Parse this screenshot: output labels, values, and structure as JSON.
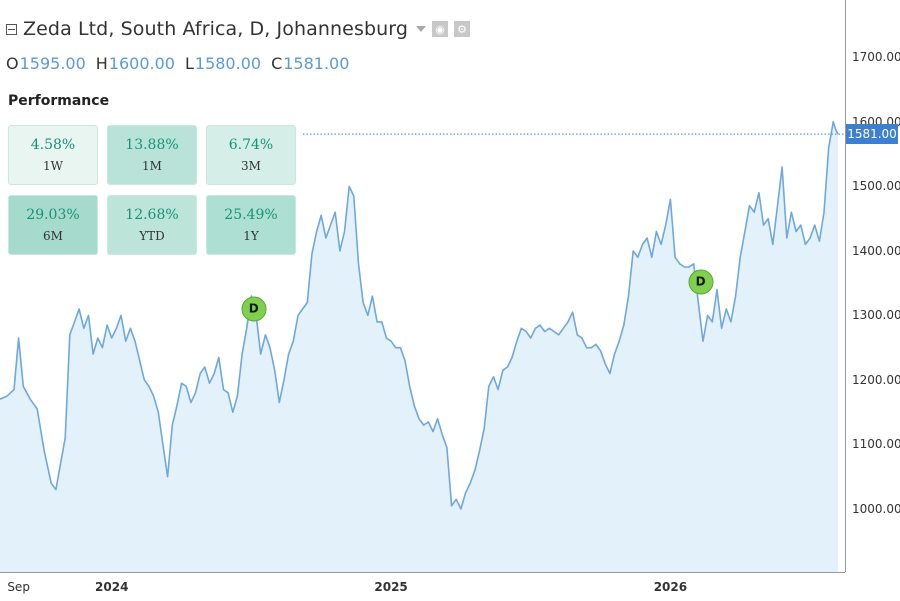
{
  "header": {
    "title": "Zeda Ltd, South Africa, D, Johannesburg",
    "ohlc": [
      {
        "key": "O",
        "value": "1595.00"
      },
      {
        "key": "H",
        "value": "1600.00"
      },
      {
        "key": "L",
        "value": "1580.00"
      },
      {
        "key": "C",
        "value": "1581.00"
      }
    ]
  },
  "performance": {
    "title": "Performance",
    "cells": [
      {
        "pct": "4.58%",
        "period": "1W",
        "color": "#e9f5f1"
      },
      {
        "pct": "13.88%",
        "period": "1M",
        "color": "#b9e3d8"
      },
      {
        "pct": "6.74%",
        "period": "3M",
        "color": "#d5eee7"
      },
      {
        "pct": "29.03%",
        "period": "6M",
        "color": "#a6dacd"
      },
      {
        "pct": "12.68%",
        "period": "YTD",
        "color": "#bce4d9"
      },
      {
        "pct": "25.49%",
        "period": "1Y",
        "color": "#addfd2"
      }
    ]
  },
  "colors": {
    "line": "#6fa8dc",
    "area": "#e3f1fb",
    "last_price": "#3d7fd1",
    "gain_text": "#179377"
  },
  "chart_data": {
    "type": "area",
    "ylim": [
      900,
      1800
    ],
    "y_ticks": [
      "1000.00",
      "1100.00",
      "1200.00",
      "1300.00",
      "1400.00",
      "1500.00",
      "1600.00",
      "1700.00"
    ],
    "x_ticks": [
      {
        "t": 0.5,
        "label": "Sep",
        "bold": false
      },
      {
        "t": 4.5,
        "label": "2024",
        "bold": true
      },
      {
        "t": 8.5,
        "label": "",
        "bold": false
      },
      {
        "t": 12.5,
        "label": "",
        "bold": false
      },
      {
        "t": 16.5,
        "label": "2025",
        "bold": true
      },
      {
        "t": 20.5,
        "label": "",
        "bold": false
      },
      {
        "t": 24.5,
        "label": "",
        "bold": false
      },
      {
        "t": 28.5,
        "label": "2026",
        "bold": true
      },
      {
        "t": 32.5,
        "label": "",
        "bold": false
      }
    ],
    "x_range": [
      0,
      36
    ],
    "last_price": {
      "value": 1581.0,
      "label": "1581.00"
    },
    "dividends": [
      {
        "t": 10.9,
        "value": 1310,
        "label": "D"
      },
      {
        "t": 30.1,
        "value": 1352,
        "label": "D"
      }
    ],
    "series": [
      {
        "points": [
          [
            0.0,
            1170
          ],
          [
            0.3,
            1175
          ],
          [
            0.6,
            1185
          ],
          [
            0.8,
            1265
          ],
          [
            1.0,
            1190
          ],
          [
            1.3,
            1170
          ],
          [
            1.6,
            1155
          ],
          [
            1.9,
            1090
          ],
          [
            2.2,
            1040
          ],
          [
            2.4,
            1030
          ],
          [
            2.6,
            1070
          ],
          [
            2.8,
            1110
          ],
          [
            3.0,
            1270
          ],
          [
            3.2,
            1290
          ],
          [
            3.4,
            1310
          ],
          [
            3.6,
            1280
          ],
          [
            3.8,
            1300
          ],
          [
            4.0,
            1240
          ],
          [
            4.2,
            1265
          ],
          [
            4.4,
            1250
          ],
          [
            4.6,
            1285
          ],
          [
            4.8,
            1265
          ],
          [
            5.0,
            1280
          ],
          [
            5.2,
            1300
          ],
          [
            5.4,
            1260
          ],
          [
            5.6,
            1280
          ],
          [
            5.8,
            1260
          ],
          [
            6.0,
            1230
          ],
          [
            6.2,
            1200
          ],
          [
            6.4,
            1190
          ],
          [
            6.6,
            1175
          ],
          [
            6.8,
            1150
          ],
          [
            7.0,
            1100
          ],
          [
            7.2,
            1050
          ],
          [
            7.4,
            1130
          ],
          [
            7.6,
            1160
          ],
          [
            7.8,
            1195
          ],
          [
            8.0,
            1190
          ],
          [
            8.2,
            1165
          ],
          [
            8.4,
            1180
          ],
          [
            8.6,
            1210
          ],
          [
            8.8,
            1220
          ],
          [
            9.0,
            1195
          ],
          [
            9.2,
            1210
          ],
          [
            9.4,
            1235
          ],
          [
            9.6,
            1185
          ],
          [
            9.8,
            1180
          ],
          [
            10.0,
            1150
          ],
          [
            10.2,
            1175
          ],
          [
            10.4,
            1240
          ],
          [
            10.6,
            1280
          ],
          [
            10.8,
            1330
          ],
          [
            11.0,
            1300
          ],
          [
            11.2,
            1240
          ],
          [
            11.4,
            1270
          ],
          [
            11.6,
            1250
          ],
          [
            11.8,
            1215
          ],
          [
            12.0,
            1165
          ],
          [
            12.2,
            1200
          ],
          [
            12.4,
            1240
          ],
          [
            12.6,
            1260
          ],
          [
            12.8,
            1300
          ],
          [
            13.0,
            1310
          ],
          [
            13.2,
            1320
          ],
          [
            13.4,
            1395
          ],
          [
            13.6,
            1430
          ],
          [
            13.8,
            1455
          ],
          [
            14.0,
            1420
          ],
          [
            14.2,
            1440
          ],
          [
            14.4,
            1460
          ],
          [
            14.6,
            1400
          ],
          [
            14.8,
            1430
          ],
          [
            15.0,
            1500
          ],
          [
            15.2,
            1485
          ],
          [
            15.4,
            1380
          ],
          [
            15.6,
            1320
          ],
          [
            15.8,
            1300
          ],
          [
            16.0,
            1330
          ],
          [
            16.2,
            1290
          ],
          [
            16.4,
            1290
          ],
          [
            16.6,
            1265
          ],
          [
            16.8,
            1260
          ],
          [
            17.0,
            1250
          ],
          [
            17.2,
            1250
          ],
          [
            17.4,
            1230
          ],
          [
            17.6,
            1190
          ],
          [
            17.8,
            1160
          ],
          [
            18.0,
            1140
          ],
          [
            18.2,
            1130
          ],
          [
            18.4,
            1135
          ],
          [
            18.6,
            1120
          ],
          [
            18.8,
            1140
          ],
          [
            19.0,
            1115
          ],
          [
            19.2,
            1095
          ],
          [
            19.4,
            1005
          ],
          [
            19.6,
            1015
          ],
          [
            19.8,
            1000
          ],
          [
            20.0,
            1025
          ],
          [
            20.2,
            1040
          ],
          [
            20.4,
            1060
          ],
          [
            20.6,
            1090
          ],
          [
            20.8,
            1125
          ],
          [
            21.0,
            1190
          ],
          [
            21.2,
            1205
          ],
          [
            21.4,
            1185
          ],
          [
            21.6,
            1215
          ],
          [
            21.8,
            1220
          ],
          [
            22.0,
            1235
          ],
          [
            22.2,
            1260
          ],
          [
            22.4,
            1280
          ],
          [
            22.6,
            1275
          ],
          [
            22.8,
            1265
          ],
          [
            23.0,
            1280
          ],
          [
            23.2,
            1285
          ],
          [
            23.4,
            1275
          ],
          [
            23.6,
            1280
          ],
          [
            23.8,
            1275
          ],
          [
            24.0,
            1270
          ],
          [
            24.2,
            1280
          ],
          [
            24.4,
            1290
          ],
          [
            24.6,
            1305
          ],
          [
            24.8,
            1270
          ],
          [
            25.0,
            1265
          ],
          [
            25.2,
            1250
          ],
          [
            25.4,
            1250
          ],
          [
            25.6,
            1255
          ],
          [
            25.8,
            1245
          ],
          [
            26.0,
            1225
          ],
          [
            26.2,
            1210
          ],
          [
            26.4,
            1240
          ],
          [
            26.6,
            1260
          ],
          [
            26.8,
            1285
          ],
          [
            27.0,
            1330
          ],
          [
            27.2,
            1400
          ],
          [
            27.4,
            1390
          ],
          [
            27.6,
            1410
          ],
          [
            27.8,
            1420
          ],
          [
            28.0,
            1390
          ],
          [
            28.2,
            1430
          ],
          [
            28.4,
            1410
          ],
          [
            28.6,
            1440
          ],
          [
            28.8,
            1480
          ],
          [
            29.0,
            1390
          ],
          [
            29.2,
            1380
          ],
          [
            29.4,
            1375
          ],
          [
            29.6,
            1375
          ],
          [
            29.8,
            1380
          ],
          [
            30.0,
            1320
          ],
          [
            30.2,
            1260
          ],
          [
            30.4,
            1300
          ],
          [
            30.6,
            1290
          ],
          [
            30.8,
            1340
          ],
          [
            31.0,
            1280
          ],
          [
            31.2,
            1310
          ],
          [
            31.4,
            1290
          ],
          [
            31.6,
            1330
          ],
          [
            31.8,
            1390
          ],
          [
            32.0,
            1430
          ],
          [
            32.2,
            1470
          ],
          [
            32.4,
            1460
          ],
          [
            32.6,
            1490
          ],
          [
            32.8,
            1440
          ],
          [
            33.0,
            1450
          ],
          [
            33.2,
            1410
          ],
          [
            33.4,
            1470
          ],
          [
            33.6,
            1530
          ],
          [
            33.8,
            1420
          ],
          [
            34.0,
            1460
          ],
          [
            34.2,
            1430
          ],
          [
            34.4,
            1440
          ],
          [
            34.6,
            1410
          ],
          [
            34.8,
            1420
          ],
          [
            35.0,
            1440
          ],
          [
            35.2,
            1415
          ],
          [
            35.4,
            1460
          ],
          [
            35.6,
            1560
          ],
          [
            35.8,
            1600
          ],
          [
            35.9,
            1588
          ],
          [
            36.0,
            1581
          ]
        ]
      }
    ]
  }
}
